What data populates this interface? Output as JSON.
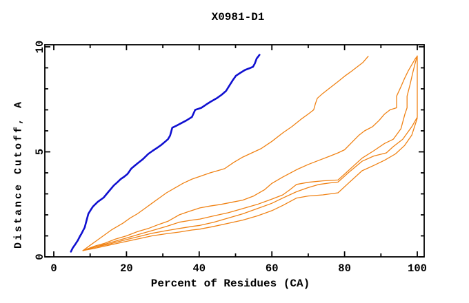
{
  "window": {
    "background": "#ffffff"
  },
  "chart_data": {
    "type": "line",
    "title": "X0981-D1",
    "xlabel": "Percent of Residues (CA)",
    "ylabel": "Distance Cutoff, A",
    "xlim": [
      0,
      100
    ],
    "ylim": [
      0,
      10
    ],
    "x_major_ticks": [
      0,
      20,
      40,
      60,
      80,
      100
    ],
    "x_minor_ticks": [
      10,
      30,
      50,
      70,
      90
    ],
    "y_major_ticks": [
      0,
      5,
      10
    ],
    "y_minor_ticks": [
      1,
      2,
      3,
      4,
      6,
      7,
      8,
      9
    ],
    "grid": false,
    "legend": "none",
    "axis_color": "#000000",
    "series": [
      {
        "name": "orange-curve-1",
        "color": "#f08214",
        "width": 1.3,
        "points": [
          [
            8,
            0.3
          ],
          [
            10,
            0.55
          ],
          [
            12,
            0.8
          ],
          [
            14,
            1.05
          ],
          [
            16,
            1.3
          ],
          [
            19,
            1.6
          ],
          [
            21,
            1.85
          ],
          [
            23,
            2.05
          ],
          [
            25,
            2.3
          ],
          [
            27,
            2.55
          ],
          [
            29,
            2.8
          ],
          [
            31,
            3.05
          ],
          [
            33,
            3.25
          ],
          [
            35.5,
            3.5
          ],
          [
            38,
            3.7
          ],
          [
            40.5,
            3.85
          ],
          [
            43,
            4.0
          ],
          [
            45,
            4.1
          ],
          [
            47,
            4.2
          ],
          [
            49.5,
            4.5
          ],
          [
            52,
            4.75
          ],
          [
            54.5,
            4.95
          ],
          [
            57,
            5.15
          ],
          [
            60,
            5.5
          ],
          [
            63,
            5.9
          ],
          [
            65.5,
            6.2
          ],
          [
            68,
            6.55
          ],
          [
            70,
            6.8
          ],
          [
            71.5,
            7.0
          ],
          [
            72,
            7.3
          ],
          [
            72.5,
            7.55
          ],
          [
            74,
            7.78
          ],
          [
            76,
            8.05
          ],
          [
            78,
            8.32
          ],
          [
            80,
            8.6
          ],
          [
            82,
            8.85
          ],
          [
            83.5,
            9.05
          ],
          [
            85,
            9.25
          ],
          [
            86.5,
            9.55
          ]
        ]
      },
      {
        "name": "orange-curve-2",
        "color": "#f08214",
        "width": 1.3,
        "points": [
          [
            8,
            0.3
          ],
          [
            11,
            0.5
          ],
          [
            14,
            0.65
          ],
          [
            17,
            0.85
          ],
          [
            20,
            1.0
          ],
          [
            23,
            1.2
          ],
          [
            26,
            1.35
          ],
          [
            29,
            1.55
          ],
          [
            31.5,
            1.7
          ],
          [
            34.5,
            2.0
          ],
          [
            37,
            2.15
          ],
          [
            40.2,
            2.33
          ],
          [
            43,
            2.42
          ],
          [
            46,
            2.5
          ],
          [
            49,
            2.6
          ],
          [
            52,
            2.7
          ],
          [
            55,
            2.9
          ],
          [
            58,
            3.2
          ],
          [
            60,
            3.5
          ],
          [
            63,
            3.8
          ],
          [
            66.8,
            4.15
          ],
          [
            70,
            4.4
          ],
          [
            73,
            4.6
          ],
          [
            76,
            4.8
          ],
          [
            78.2,
            4.95
          ],
          [
            80,
            5.1
          ],
          [
            82,
            5.45
          ],
          [
            84,
            5.8
          ],
          [
            85.5,
            6.0
          ],
          [
            87.7,
            6.2
          ],
          [
            89.5,
            6.5
          ],
          [
            91,
            6.8
          ],
          [
            92.5,
            7.0
          ],
          [
            94.3,
            7.1
          ],
          [
            94.3,
            7.65
          ],
          [
            95.5,
            8.1
          ],
          [
            96.5,
            8.5
          ],
          [
            97.5,
            8.85
          ],
          [
            98.5,
            9.15
          ],
          [
            99.5,
            9.45
          ],
          [
            100,
            9.55
          ]
        ]
      },
      {
        "name": "orange-curve-3",
        "color": "#f08214",
        "width": 1.3,
        "points": [
          [
            8,
            0.3
          ],
          [
            12,
            0.5
          ],
          [
            16,
            0.7
          ],
          [
            20,
            0.9
          ],
          [
            24,
            1.1
          ],
          [
            28,
            1.3
          ],
          [
            31,
            1.45
          ],
          [
            34.5,
            1.65
          ],
          [
            38,
            1.75
          ],
          [
            40.2,
            1.8
          ],
          [
            44,
            1.95
          ],
          [
            48,
            2.1
          ],
          [
            52,
            2.3
          ],
          [
            56,
            2.5
          ],
          [
            60,
            2.75
          ],
          [
            63,
            2.95
          ],
          [
            65,
            3.2
          ],
          [
            66.8,
            3.45
          ],
          [
            70,
            3.55
          ],
          [
            74,
            3.62
          ],
          [
            78.2,
            3.66
          ],
          [
            81,
            4.1
          ],
          [
            84.8,
            4.7
          ],
          [
            88,
            5.05
          ],
          [
            91,
            5.4
          ],
          [
            93.4,
            5.6
          ],
          [
            95.5,
            6.1
          ],
          [
            96.6,
            6.8
          ],
          [
            97.2,
            7.1
          ],
          [
            97.2,
            7.65
          ],
          [
            98,
            8.2
          ],
          [
            98.8,
            8.8
          ],
          [
            99.4,
            9.2
          ],
          [
            99.8,
            9.45
          ]
        ]
      },
      {
        "name": "orange-curve-4",
        "color": "#f08214",
        "width": 1.3,
        "points": [
          [
            8,
            0.3
          ],
          [
            11,
            0.45
          ],
          [
            15,
            0.6
          ],
          [
            19,
            0.78
          ],
          [
            23,
            0.95
          ],
          [
            27,
            1.12
          ],
          [
            31,
            1.25
          ],
          [
            34.5,
            1.35
          ],
          [
            38,
            1.45
          ],
          [
            40.2,
            1.5
          ],
          [
            44,
            1.65
          ],
          [
            48,
            1.85
          ],
          [
            52,
            2.05
          ],
          [
            56,
            2.3
          ],
          [
            60,
            2.55
          ],
          [
            63,
            2.8
          ],
          [
            66.8,
            3.1
          ],
          [
            70,
            3.3
          ],
          [
            73,
            3.45
          ],
          [
            76,
            3.52
          ],
          [
            78.2,
            3.56
          ],
          [
            81,
            4.0
          ],
          [
            84.8,
            4.55
          ],
          [
            88,
            4.8
          ],
          [
            91.5,
            4.95
          ],
          [
            93.4,
            5.25
          ],
          [
            96,
            5.6
          ],
          [
            98.5,
            6.2
          ],
          [
            100,
            6.65
          ],
          [
            100,
            9.57
          ]
        ]
      },
      {
        "name": "orange-curve-5",
        "color": "#f08214",
        "width": 1.3,
        "points": [
          [
            8,
            0.3
          ],
          [
            11,
            0.4
          ],
          [
            15,
            0.55
          ],
          [
            19,
            0.7
          ],
          [
            23,
            0.85
          ],
          [
            27,
            1.0
          ],
          [
            31,
            1.1
          ],
          [
            34.5,
            1.18
          ],
          [
            38,
            1.28
          ],
          [
            40.2,
            1.32
          ],
          [
            44,
            1.45
          ],
          [
            48,
            1.6
          ],
          [
            52,
            1.75
          ],
          [
            56,
            1.95
          ],
          [
            60,
            2.2
          ],
          [
            63,
            2.45
          ],
          [
            66.8,
            2.8
          ],
          [
            70,
            2.9
          ],
          [
            74,
            2.95
          ],
          [
            78.2,
            3.05
          ],
          [
            81,
            3.5
          ],
          [
            84.8,
            4.1
          ],
          [
            88,
            4.35
          ],
          [
            91,
            4.6
          ],
          [
            94,
            4.9
          ],
          [
            96.5,
            5.3
          ],
          [
            98.5,
            5.8
          ],
          [
            100,
            6.6
          ]
        ]
      },
      {
        "name": "blue-curve",
        "color": "#1010d0",
        "width": 2.6,
        "points": [
          [
            4.7,
            0.25
          ],
          [
            5.2,
            0.42
          ],
          [
            6.0,
            0.62
          ],
          [
            6.6,
            0.78
          ],
          [
            7.2,
            0.98
          ],
          [
            7.6,
            1.1
          ],
          [
            8.5,
            1.4
          ],
          [
            9.0,
            1.72
          ],
          [
            9.5,
            2.05
          ],
          [
            10.2,
            2.25
          ],
          [
            10.8,
            2.4
          ],
          [
            12.1,
            2.62
          ],
          [
            13.7,
            2.82
          ],
          [
            14.8,
            3.05
          ],
          [
            16.5,
            3.4
          ],
          [
            17.5,
            3.55
          ],
          [
            18.4,
            3.7
          ],
          [
            19.4,
            3.82
          ],
          [
            20.3,
            3.95
          ],
          [
            21.3,
            4.2
          ],
          [
            22.2,
            4.33
          ],
          [
            23.1,
            4.46
          ],
          [
            24.5,
            4.65
          ],
          [
            26.0,
            4.9
          ],
          [
            27.2,
            5.05
          ],
          [
            28.5,
            5.2
          ],
          [
            29.5,
            5.32
          ],
          [
            30.4,
            5.45
          ],
          [
            31.4,
            5.6
          ],
          [
            32.0,
            5.77
          ],
          [
            32.6,
            6.15
          ],
          [
            33.8,
            6.25
          ],
          [
            34.9,
            6.35
          ],
          [
            36.5,
            6.5
          ],
          [
            38.0,
            6.66
          ],
          [
            38.9,
            7.0
          ],
          [
            39.8,
            7.05
          ],
          [
            40.6,
            7.1
          ],
          [
            41.9,
            7.25
          ],
          [
            43.1,
            7.38
          ],
          [
            45.0,
            7.57
          ],
          [
            46.2,
            7.72
          ],
          [
            47.4,
            7.9
          ],
          [
            48.3,
            8.15
          ],
          [
            49.2,
            8.4
          ],
          [
            50.1,
            8.62
          ],
          [
            51.4,
            8.77
          ],
          [
            52.6,
            8.9
          ],
          [
            53.7,
            8.97
          ],
          [
            54.8,
            9.05
          ],
          [
            55.3,
            9.2
          ],
          [
            55.8,
            9.44
          ],
          [
            56.3,
            9.55
          ],
          [
            56.6,
            9.62
          ]
        ]
      }
    ]
  }
}
